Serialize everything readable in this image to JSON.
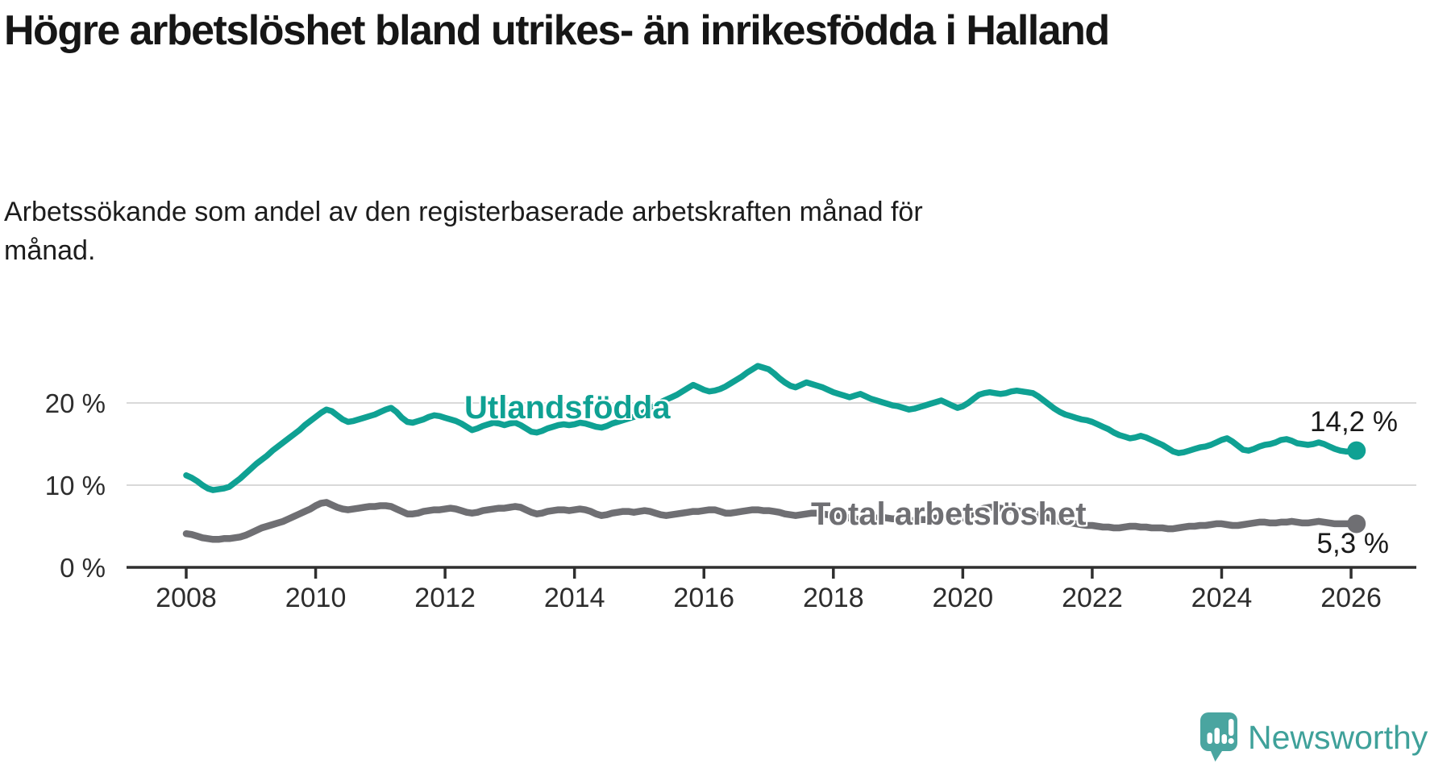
{
  "header": {
    "title": "Högre arbetslöshet bland utrikes- än inrikesfödda i Halland",
    "subtitle": "Arbetssökande som andel av den registerbaserade arbetskraften månad för månad."
  },
  "footer": {
    "brand": "Newsworthy",
    "brand_color": "#3fa19a",
    "icon_color": "#4aa5a0"
  },
  "chart_data": {
    "type": "line",
    "title": "Högre arbetslöshet bland utrikes- än inrikesfödda i Halland",
    "x_unit": "month",
    "x_start_year": 2008,
    "x_end": "2026-02",
    "ylim": [
      0,
      26
    ],
    "grid": "horizontal",
    "grid_color": "#d9d9d9",
    "axis_color": "#2f2f2f",
    "tick_label_color": "#2d2d2d",
    "x_ticks": [
      {
        "label": "2008",
        "year": 2008
      },
      {
        "label": "2010",
        "year": 2010
      },
      {
        "label": "2012",
        "year": 2012
      },
      {
        "label": "2014",
        "year": 2014
      },
      {
        "label": "2016",
        "year": 2016
      },
      {
        "label": "2018",
        "year": 2018
      },
      {
        "label": "2020",
        "year": 2020
      },
      {
        "label": "2022",
        "year": 2022
      },
      {
        "label": "2024",
        "year": 2024
      },
      {
        "label": "2026",
        "year": 2026
      }
    ],
    "y_ticks": [
      {
        "label": "0 %",
        "value": 0
      },
      {
        "label": "10 %",
        "value": 10
      },
      {
        "label": "20 %",
        "value": 20
      }
    ],
    "series": [
      {
        "name": "Utlandsfödda",
        "color": "#0fa193",
        "end_value": 14.2,
        "end_label": "14,2 %",
        "values": [
          11.2,
          10.9,
          10.5,
          10.0,
          9.6,
          9.4,
          9.5,
          9.6,
          9.8,
          10.3,
          10.8,
          11.4,
          12.0,
          12.6,
          13.1,
          13.6,
          14.2,
          14.7,
          15.2,
          15.7,
          16.2,
          16.7,
          17.3,
          17.8,
          18.3,
          18.8,
          19.2,
          19.0,
          18.5,
          18.0,
          17.7,
          17.8,
          18.0,
          18.2,
          18.4,
          18.6,
          18.9,
          19.2,
          19.4,
          18.9,
          18.2,
          17.7,
          17.6,
          17.8,
          18.0,
          18.3,
          18.5,
          18.4,
          18.2,
          18.0,
          17.8,
          17.5,
          17.1,
          16.7,
          16.9,
          17.2,
          17.4,
          17.6,
          17.5,
          17.3,
          17.5,
          17.6,
          17.3,
          16.9,
          16.5,
          16.4,
          16.6,
          16.9,
          17.1,
          17.3,
          17.4,
          17.3,
          17.4,
          17.6,
          17.5,
          17.3,
          17.1,
          17.0,
          17.2,
          17.5,
          17.7,
          17.9,
          18.1,
          18.3,
          18.6,
          18.9,
          19.3,
          19.7,
          20.1,
          20.4,
          20.7,
          21.0,
          21.4,
          21.8,
          22.2,
          21.9,
          21.6,
          21.4,
          21.5,
          21.7,
          22.0,
          22.4,
          22.8,
          23.2,
          23.7,
          24.1,
          24.5,
          24.3,
          24.1,
          23.6,
          23.0,
          22.5,
          22.1,
          21.9,
          22.2,
          22.5,
          22.3,
          22.1,
          21.9,
          21.6,
          21.3,
          21.1,
          20.9,
          20.7,
          20.9,
          21.1,
          20.8,
          20.5,
          20.3,
          20.1,
          19.9,
          19.7,
          19.6,
          19.4,
          19.2,
          19.3,
          19.5,
          19.7,
          19.9,
          20.1,
          20.3,
          20.0,
          19.7,
          19.4,
          19.6,
          20.0,
          20.5,
          21.0,
          21.2,
          21.3,
          21.2,
          21.1,
          21.2,
          21.4,
          21.5,
          21.4,
          21.3,
          21.2,
          20.8,
          20.3,
          19.8,
          19.3,
          18.9,
          18.6,
          18.4,
          18.2,
          18.0,
          17.9,
          17.7,
          17.4,
          17.1,
          16.8,
          16.4,
          16.1,
          15.9,
          15.7,
          15.8,
          16.0,
          15.8,
          15.5,
          15.2,
          14.9,
          14.5,
          14.1,
          13.9,
          14.0,
          14.2,
          14.4,
          14.6,
          14.7,
          14.9,
          15.2,
          15.5,
          15.7,
          15.3,
          14.8,
          14.3,
          14.2,
          14.4,
          14.7,
          14.9,
          15.0,
          15.2,
          15.5,
          15.6,
          15.4,
          15.1,
          15.0,
          14.9,
          15.0,
          15.2,
          15.0,
          14.7,
          14.4,
          14.2,
          14.1,
          14.1,
          14.2
        ]
      },
      {
        "name": "Total arbetslöshet",
        "color": "#6f6f73",
        "end_value": 5.3,
        "end_label": "5,3 %",
        "values": [
          4.1,
          4.0,
          3.8,
          3.6,
          3.5,
          3.4,
          3.4,
          3.5,
          3.5,
          3.6,
          3.7,
          3.9,
          4.2,
          4.5,
          4.8,
          5.0,
          5.2,
          5.4,
          5.6,
          5.9,
          6.2,
          6.5,
          6.8,
          7.1,
          7.5,
          7.8,
          7.9,
          7.6,
          7.3,
          7.1,
          7.0,
          7.1,
          7.2,
          7.3,
          7.4,
          7.4,
          7.5,
          7.5,
          7.4,
          7.1,
          6.8,
          6.5,
          6.5,
          6.6,
          6.8,
          6.9,
          7.0,
          7.0,
          7.1,
          7.2,
          7.1,
          6.9,
          6.7,
          6.6,
          6.7,
          6.9,
          7.0,
          7.1,
          7.2,
          7.2,
          7.3,
          7.4,
          7.3,
          7.0,
          6.7,
          6.5,
          6.6,
          6.8,
          6.9,
          7.0,
          7.0,
          6.9,
          7.0,
          7.1,
          7.0,
          6.8,
          6.5,
          6.3,
          6.4,
          6.6,
          6.7,
          6.8,
          6.8,
          6.7,
          6.8,
          6.9,
          6.8,
          6.6,
          6.4,
          6.3,
          6.4,
          6.5,
          6.6,
          6.7,
          6.8,
          6.8,
          6.9,
          7.0,
          7.0,
          6.8,
          6.6,
          6.6,
          6.7,
          6.8,
          6.9,
          7.0,
          7.0,
          6.9,
          6.9,
          6.8,
          6.7,
          6.5,
          6.4,
          6.3,
          6.4,
          6.5,
          6.6,
          6.6,
          6.5,
          6.4,
          6.4,
          6.3,
          6.2,
          6.0,
          5.9,
          5.8,
          5.9,
          6.0,
          6.0,
          6.1,
          6.0,
          5.9,
          5.9,
          5.8,
          5.7,
          5.7,
          5.8,
          5.8,
          5.9,
          6.0,
          6.1,
          6.0,
          5.9,
          5.9,
          6.0,
          6.2,
          6.6,
          7.0,
          7.2,
          7.3,
          7.3,
          7.2,
          7.1,
          7.0,
          6.9,
          6.8,
          6.7,
          6.6,
          6.4,
          6.2,
          6.0,
          5.8,
          5.6,
          5.5,
          5.4,
          5.3,
          5.2,
          5.1,
          5.1,
          5.0,
          4.9,
          4.9,
          4.8,
          4.8,
          4.9,
          5.0,
          5.0,
          4.9,
          4.9,
          4.8,
          4.8,
          4.8,
          4.7,
          4.7,
          4.8,
          4.9,
          5.0,
          5.0,
          5.1,
          5.1,
          5.2,
          5.3,
          5.3,
          5.2,
          5.1,
          5.1,
          5.2,
          5.3,
          5.4,
          5.5,
          5.5,
          5.4,
          5.4,
          5.5,
          5.5,
          5.6,
          5.5,
          5.4,
          5.4,
          5.5,
          5.6,
          5.5,
          5.4,
          5.3,
          5.3,
          5.3,
          5.3,
          5.3
        ]
      }
    ]
  }
}
